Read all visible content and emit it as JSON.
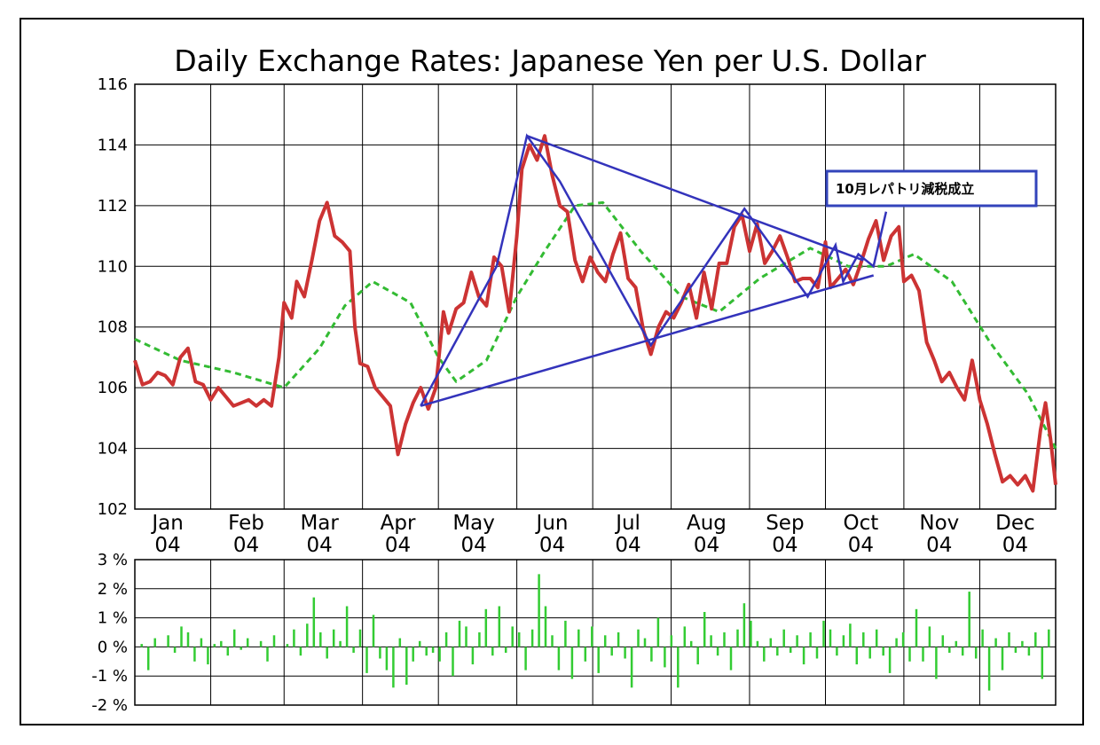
{
  "chart_data": [
    {
      "type": "line",
      "title": "Daily Exchange Rates: Japanese Yen per U.S. Dollar",
      "xlabel": "",
      "ylabel": "",
      "x_range": [
        "2004-01-02",
        "2004-12-31"
      ],
      "ylim": [
        102,
        116
      ],
      "yticks": [
        102,
        104,
        106,
        108,
        110,
        112,
        114,
        116
      ],
      "month_labels": [
        {
          "date": "2004-01-15",
          "month": "Jan",
          "year": "04"
        },
        {
          "date": "2004-02-15",
          "month": "Feb",
          "year": "04"
        },
        {
          "date": "2004-03-15",
          "month": "Mar",
          "year": "04"
        },
        {
          "date": "2004-04-15",
          "month": "Apr",
          "year": "04"
        },
        {
          "date": "2004-05-15",
          "month": "May",
          "year": "04"
        },
        {
          "date": "2004-06-15",
          "month": "Jun",
          "year": "04"
        },
        {
          "date": "2004-07-15",
          "month": "Jul",
          "year": "04"
        },
        {
          "date": "2004-08-15",
          "month": "Aug",
          "year": "04"
        },
        {
          "date": "2004-09-15",
          "month": "Sep",
          "year": "04"
        },
        {
          "date": "2004-10-15",
          "month": "Oct",
          "year": "04"
        },
        {
          "date": "2004-11-15",
          "month": "Nov",
          "year": "04"
        },
        {
          "date": "2004-12-15",
          "month": "Dec",
          "year": "04"
        }
      ],
      "grid": true,
      "series": [
        {
          "color": "#cc3333",
          "style": "solid",
          "points": [
            [
              "2004-01-02",
              106.9
            ],
            [
              "2004-01-05",
              106.1
            ],
            [
              "2004-01-08",
              106.2
            ],
            [
              "2004-01-11",
              106.5
            ],
            [
              "2004-01-14",
              106.4
            ],
            [
              "2004-01-17",
              106.1
            ],
            [
              "2004-01-20",
              107.0
            ],
            [
              "2004-01-23",
              107.3
            ],
            [
              "2004-01-26",
              106.2
            ],
            [
              "2004-01-29",
              106.1
            ],
            [
              "2004-02-01",
              105.6
            ],
            [
              "2004-02-04",
              106.0
            ],
            [
              "2004-02-07",
              105.7
            ],
            [
              "2004-02-10",
              105.4
            ],
            [
              "2004-02-13",
              105.5
            ],
            [
              "2004-02-16",
              105.6
            ],
            [
              "2004-02-19",
              105.4
            ],
            [
              "2004-02-22",
              105.6
            ],
            [
              "2004-02-25",
              105.4
            ],
            [
              "2004-02-28",
              107.0
            ],
            [
              "2004-03-01",
              108.8
            ],
            [
              "2004-03-04",
              108.3
            ],
            [
              "2004-03-06",
              109.5
            ],
            [
              "2004-03-09",
              109.0
            ],
            [
              "2004-03-12",
              110.2
            ],
            [
              "2004-03-15",
              111.5
            ],
            [
              "2004-03-18",
              112.1
            ],
            [
              "2004-03-21",
              111.0
            ],
            [
              "2004-03-24",
              110.8
            ],
            [
              "2004-03-27",
              110.5
            ],
            [
              "2004-03-29",
              108.0
            ],
            [
              "2004-03-31",
              106.8
            ],
            [
              "2004-04-03",
              106.7
            ],
            [
              "2004-04-06",
              106.0
            ],
            [
              "2004-04-09",
              105.7
            ],
            [
              "2004-04-12",
              105.4
            ],
            [
              "2004-04-15",
              103.8
            ],
            [
              "2004-04-18",
              104.8
            ],
            [
              "2004-04-21",
              105.5
            ],
            [
              "2004-04-24",
              106.0
            ],
            [
              "2004-04-27",
              105.3
            ],
            [
              "2004-04-30",
              106.0
            ],
            [
              "2004-05-03",
              108.5
            ],
            [
              "2004-05-05",
              107.8
            ],
            [
              "2004-05-08",
              108.6
            ],
            [
              "2004-05-11",
              108.8
            ],
            [
              "2004-05-14",
              109.8
            ],
            [
              "2004-05-17",
              109.0
            ],
            [
              "2004-05-20",
              108.7
            ],
            [
              "2004-05-23",
              110.3
            ],
            [
              "2004-05-26",
              110.0
            ],
            [
              "2004-05-29",
              108.5
            ],
            [
              "2004-06-01",
              111.0
            ],
            [
              "2004-06-03",
              113.2
            ],
            [
              "2004-06-06",
              114.0
            ],
            [
              "2004-06-09",
              113.5
            ],
            [
              "2004-06-12",
              114.3
            ],
            [
              "2004-06-15",
              113.0
            ],
            [
              "2004-06-18",
              112.0
            ],
            [
              "2004-06-21",
              111.8
            ],
            [
              "2004-06-24",
              110.2
            ],
            [
              "2004-06-27",
              109.5
            ],
            [
              "2004-06-30",
              110.3
            ],
            [
              "2004-07-03",
              109.8
            ],
            [
              "2004-07-06",
              109.5
            ],
            [
              "2004-07-09",
              110.4
            ],
            [
              "2004-07-12",
              111.1
            ],
            [
              "2004-07-15",
              109.6
            ],
            [
              "2004-07-18",
              109.3
            ],
            [
              "2004-07-21",
              107.9
            ],
            [
              "2004-07-24",
              107.1
            ],
            [
              "2004-07-27",
              108.0
            ],
            [
              "2004-07-30",
              108.5
            ],
            [
              "2004-08-02",
              108.3
            ],
            [
              "2004-08-05",
              108.8
            ],
            [
              "2004-08-08",
              109.4
            ],
            [
              "2004-08-11",
              108.3
            ],
            [
              "2004-08-14",
              109.8
            ],
            [
              "2004-08-17",
              108.6
            ],
            [
              "2004-08-20",
              110.1
            ],
            [
              "2004-08-23",
              110.1
            ],
            [
              "2004-08-26",
              111.3
            ],
            [
              "2004-08-29",
              111.7
            ],
            [
              "2004-09-01",
              110.5
            ],
            [
              "2004-09-04",
              111.4
            ],
            [
              "2004-09-07",
              110.1
            ],
            [
              "2004-09-10",
              110.5
            ],
            [
              "2004-09-13",
              111.0
            ],
            [
              "2004-09-16",
              110.3
            ],
            [
              "2004-09-19",
              109.5
            ],
            [
              "2004-09-22",
              109.6
            ],
            [
              "2004-09-25",
              109.6
            ],
            [
              "2004-09-28",
              109.3
            ],
            [
              "2004-10-01",
              110.8
            ],
            [
              "2004-10-03",
              109.3
            ],
            [
              "2004-10-06",
              109.6
            ],
            [
              "2004-10-09",
              109.9
            ],
            [
              "2004-10-12",
              109.4
            ],
            [
              "2004-10-15",
              110.1
            ],
            [
              "2004-10-18",
              110.9
            ],
            [
              "2004-10-21",
              111.5
            ],
            [
              "2004-10-24",
              110.2
            ],
            [
              "2004-10-27",
              111.0
            ],
            [
              "2004-10-30",
              111.3
            ],
            [
              "2004-11-01",
              109.5
            ],
            [
              "2004-11-04",
              109.7
            ],
            [
              "2004-11-07",
              109.2
            ],
            [
              "2004-11-10",
              107.5
            ],
            [
              "2004-11-13",
              106.9
            ],
            [
              "2004-11-16",
              106.2
            ],
            [
              "2004-11-19",
              106.5
            ],
            [
              "2004-11-22",
              106.0
            ],
            [
              "2004-11-25",
              105.6
            ],
            [
              "2004-11-28",
              106.9
            ],
            [
              "2004-12-01",
              105.6
            ],
            [
              "2004-12-04",
              104.8
            ],
            [
              "2004-12-07",
              103.8
            ],
            [
              "2004-12-10",
              102.9
            ],
            [
              "2004-12-13",
              103.1
            ],
            [
              "2004-12-16",
              102.8
            ],
            [
              "2004-12-19",
              103.1
            ],
            [
              "2004-12-22",
              102.6
            ],
            [
              "2004-12-25",
              104.6
            ],
            [
              "2004-12-27",
              105.5
            ],
            [
              "2004-12-29",
              104.3
            ],
            [
              "2004-12-31",
              102.8
            ]
          ]
        },
        {
          "color": "#33bb33",
          "style": "dashed",
          "points": [
            [
              "2004-01-02",
              107.6
            ],
            [
              "2004-01-20",
              106.9
            ],
            [
              "2004-02-10",
              106.5
            ],
            [
              "2004-03-01",
              106.0
            ],
            [
              "2004-03-15",
              107.3
            ],
            [
              "2004-03-25",
              108.7
            ],
            [
              "2004-04-05",
              109.5
            ],
            [
              "2004-04-20",
              108.8
            ],
            [
              "2004-05-01",
              107.0
            ],
            [
              "2004-05-08",
              106.2
            ],
            [
              "2004-05-20",
              106.9
            ],
            [
              "2004-06-01",
              109.0
            ],
            [
              "2004-06-12",
              110.5
            ],
            [
              "2004-06-24",
              112.0
            ],
            [
              "2004-07-05",
              112.1
            ],
            [
              "2004-07-20",
              110.5
            ],
            [
              "2004-08-05",
              109.0
            ],
            [
              "2004-08-20",
              108.5
            ],
            [
              "2004-09-05",
              109.6
            ],
            [
              "2004-09-25",
              110.6
            ],
            [
              "2004-10-10",
              110.0
            ],
            [
              "2004-10-25",
              110.0
            ],
            [
              "2004-11-05",
              110.4
            ],
            [
              "2004-11-20",
              109.5
            ],
            [
              "2004-12-05",
              107.5
            ],
            [
              "2004-12-20",
              105.8
            ],
            [
              "2004-12-31",
              104.0
            ]
          ]
        }
      ],
      "overlay_lines": [
        {
          "color": "#3333bb",
          "points": [
            [
              "2004-04-24",
              105.4
            ],
            [
              "2004-05-24",
              110.0
            ],
            [
              "2004-06-05",
              114.3
            ],
            [
              "2004-06-18",
              112.8
            ],
            [
              "2004-07-24",
              107.4
            ],
            [
              "2004-08-30",
              111.9
            ],
            [
              "2004-09-24",
              109.0
            ],
            [
              "2004-10-05",
              110.7
            ],
            [
              "2004-10-08",
              109.5
            ],
            [
              "2004-10-14",
              110.4
            ],
            [
              "2004-10-20",
              110.0
            ],
            [
              "2004-10-25",
              111.8
            ]
          ]
        },
        {
          "color": "#3333bb",
          "points": [
            [
              "2004-06-05",
              114.3
            ],
            [
              "2004-10-16",
              110.2
            ]
          ]
        },
        {
          "color": "#3333bb",
          "points": [
            [
              "2004-04-24",
              105.4
            ],
            [
              "2004-10-20",
              109.7
            ]
          ]
        }
      ],
      "annotations": [
        {
          "text": "10月レパトリ減税成立",
          "date": "2004-10-20",
          "value": 112.5
        }
      ]
    },
    {
      "type": "bar",
      "ylim": [
        -2,
        3
      ],
      "yticks": [
        -2,
        -1,
        0,
        1,
        2,
        3
      ],
      "ytick_labels": [
        "-2 %",
        "-1 %",
        "0 %",
        "1 %",
        "2 %",
        "3 %"
      ],
      "grid": true,
      "color": "#33cc33",
      "series_note": "daily percent change",
      "values": [
        0.1,
        -0.8,
        0.3,
        0.0,
        0.4,
        -0.2,
        0.7,
        0.5,
        -0.5,
        0.3,
        -0.6,
        0.1,
        0.2,
        -0.3,
        0.6,
        -0.1,
        0.3,
        0.0,
        0.2,
        -0.5,
        0.4,
        0.0,
        0.1,
        0.6,
        -0.3,
        0.8,
        1.7,
        0.5,
        -0.4,
        0.6,
        0.2,
        1.4,
        -0.2,
        0.6,
        -0.9,
        1.1,
        -0.4,
        -0.8,
        -1.4,
        0.3,
        -1.3,
        -0.5,
        0.2,
        -0.3,
        -0.2,
        -0.5,
        0.5,
        -1.0,
        0.9,
        0.7,
        -0.6,
        0.5,
        1.3,
        -0.3,
        1.4,
        -0.2,
        0.7,
        0.5,
        -0.8,
        0.6,
        2.5,
        1.4,
        0.4,
        -0.8,
        0.9,
        -1.1,
        0.6,
        -0.5,
        0.7,
        -0.9,
        0.4,
        -0.3,
        0.5,
        -0.4,
        -1.4,
        0.6,
        0.3,
        -0.5,
        1.0,
        -0.7,
        0.4,
        -1.4,
        0.7,
        0.2,
        -0.6,
        1.2,
        0.4,
        -0.3,
        0.5,
        -0.8,
        0.6,
        1.5,
        0.9,
        0.2,
        -0.5,
        0.3,
        -0.3,
        0.6,
        -0.2,
        0.4,
        -0.6,
        0.5,
        -0.4,
        0.9,
        0.6,
        -0.3,
        0.4,
        0.8,
        -0.6,
        0.5,
        -0.4,
        0.6,
        -0.3,
        -0.9,
        0.3,
        0.5,
        -0.5,
        1.3,
        -0.5,
        0.7,
        -1.1,
        0.4,
        -0.2,
        0.2,
        -0.3,
        1.9,
        -0.4,
        0.6,
        -1.5,
        0.3,
        -0.8,
        0.5,
        -0.2,
        0.2,
        -0.3,
        0.5,
        -1.1,
        0.6
      ]
    }
  ]
}
